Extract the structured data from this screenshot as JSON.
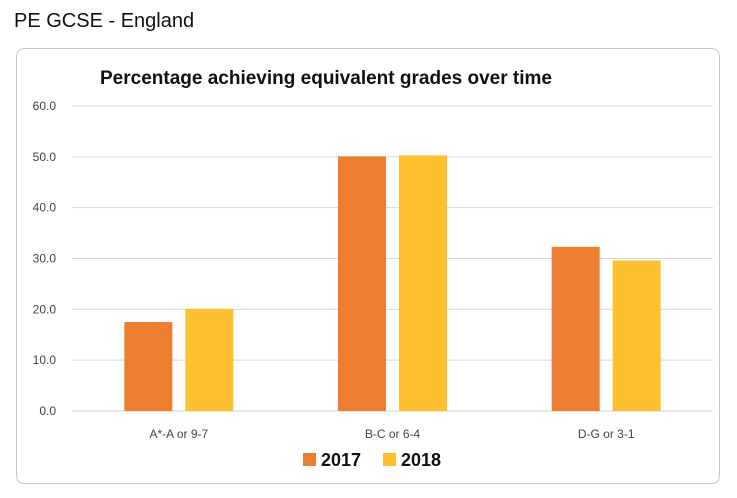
{
  "header": {
    "title": "PE GCSE - England"
  },
  "chart_data": {
    "type": "bar",
    "title": "Percentage achieving equivalent grades over time",
    "categories": [
      "A*-A or 9-7",
      "B-C or 6-4",
      "D-G or 3-1"
    ],
    "series": [
      {
        "name": "2017",
        "values": [
          17.5,
          50.1,
          32.3
        ],
        "color": "#ED7D31"
      },
      {
        "name": "2018",
        "values": [
          20.1,
          50.3,
          29.6
        ],
        "color": "#FFC02F"
      }
    ],
    "yticks": [
      "0.0",
      "10.0",
      "20.0",
      "30.0",
      "40.0",
      "50.0",
      "60.0"
    ],
    "ylim": [
      0,
      60
    ],
    "grid": true,
    "legend": "bottom"
  }
}
